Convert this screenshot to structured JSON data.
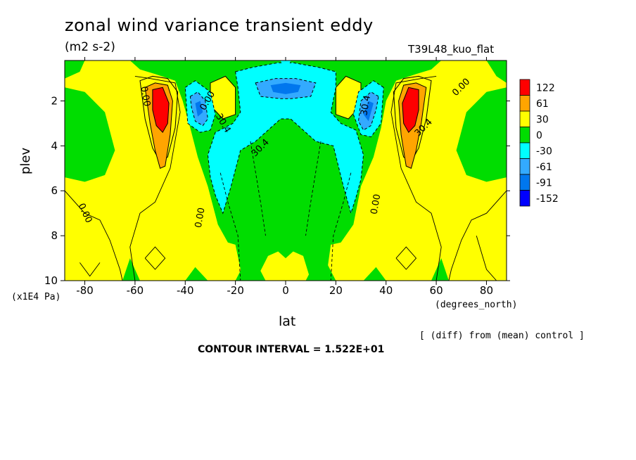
{
  "title": "zonal wind variance transient eddy",
  "units": "(m2 s-2)",
  "run_id": "T39L48_kuo_flat",
  "diff_note": "[ (diff) from (mean) control ]",
  "contour_interval": "CONTOUR INTERVAL = 1.522E+01",
  "chart_data": {
    "type": "heatmap",
    "xlabel": "lat",
    "x_unit": "(degrees_north)",
    "ylabel": "plev",
    "y_unit": "(x1E4 Pa)",
    "xlim": [
      -88,
      88
    ],
    "ylim": [
      10,
      0.2
    ],
    "x_ticks": [
      -80,
      -60,
      -40,
      -20,
      0,
      20,
      40,
      60,
      80
    ],
    "y_ticks": [
      2,
      4,
      6,
      8,
      10
    ],
    "colorbar": {
      "levels": [
        "122",
        "61",
        "30",
        "0",
        "-30",
        "-61",
        "-91",
        "-152"
      ],
      "colors": [
        "#ff0000",
        "#ffa500",
        "#ffff00",
        "#00dd00",
        "#00ffff",
        "#33aaff",
        "#0077ee",
        "#0000ff"
      ]
    },
    "contour_labels": [
      "0.00",
      "0.00",
      "0.00",
      "0.00",
      "0.00",
      "30.4",
      "30.4",
      "30.4",
      "30.4",
      "0.00"
    ],
    "features": [
      {
        "lat": -50,
        "plev": 2.3,
        "value": 122
      },
      {
        "lat": 50,
        "plev": 2.3,
        "value": 122
      },
      {
        "lat": -34,
        "plev": 2.5,
        "value": -91
      },
      {
        "lat": 33,
        "plev": 2.7,
        "value": -91
      },
      {
        "lat": 0,
        "plev": 1.5,
        "value": -61
      },
      {
        "lat": -25,
        "plev": 1.8,
        "value": 30
      },
      {
        "lat": 25,
        "plev": 1.8,
        "value": 30
      }
    ]
  }
}
